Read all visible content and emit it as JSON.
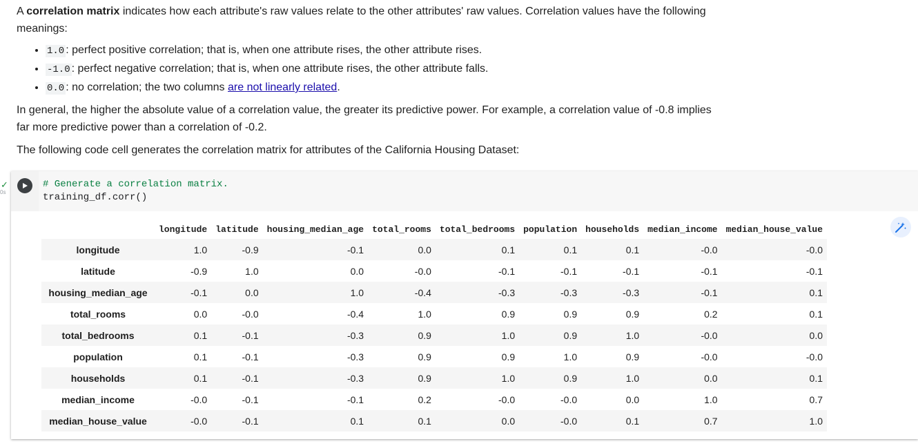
{
  "intro": {
    "p1_prefix": "A ",
    "p1_bold": "correlation matrix",
    "p1_suffix": " indicates how each attribute's raw values relate to the other attributes' raw values. Correlation values have the following meanings:",
    "bullets": [
      {
        "code": "1.0",
        "text": ": perfect positive correlation; that is, when one attribute rises, the other attribute rises."
      },
      {
        "code": "-1.0",
        "text": ": perfect negative correlation; that is, when one attribute rises, the other attribute falls."
      },
      {
        "code": "0.0",
        "text": ": no correlation; the two columns ",
        "link": "are not linearly related",
        "after": "."
      }
    ],
    "p2": "In general, the higher the absolute value of a correlation value, the greater its predictive power. For example, a correlation value of -0.8 implies far more predictive power than a correlation of -0.2.",
    "p3": "The following code cell generates the correlation matrix for attributes of the California Housing Dataset:"
  },
  "cell": {
    "status_check": "✓",
    "exec_time": "0s",
    "code_comment": "# Generate a correlation matrix.",
    "code_line": "training_df.corr()"
  },
  "table": {
    "columns": [
      "longitude",
      "latitude",
      "housing_median_age",
      "total_rooms",
      "total_bedrooms",
      "population",
      "households",
      "median_income",
      "median_house_value"
    ],
    "rows": [
      {
        "label": "longitude",
        "values": [
          "1.0",
          "-0.9",
          "-0.1",
          "0.0",
          "0.1",
          "0.1",
          "0.1",
          "-0.0",
          "-0.0"
        ]
      },
      {
        "label": "latitude",
        "values": [
          "-0.9",
          "1.0",
          "0.0",
          "-0.0",
          "-0.1",
          "-0.1",
          "-0.1",
          "-0.1",
          "-0.1"
        ]
      },
      {
        "label": "housing_median_age",
        "values": [
          "-0.1",
          "0.0",
          "1.0",
          "-0.4",
          "-0.3",
          "-0.3",
          "-0.3",
          "-0.1",
          "0.1"
        ]
      },
      {
        "label": "total_rooms",
        "values": [
          "0.0",
          "-0.0",
          "-0.4",
          "1.0",
          "0.9",
          "0.9",
          "0.9",
          "0.2",
          "0.1"
        ]
      },
      {
        "label": "total_bedrooms",
        "values": [
          "0.1",
          "-0.1",
          "-0.3",
          "0.9",
          "1.0",
          "0.9",
          "1.0",
          "-0.0",
          "0.0"
        ]
      },
      {
        "label": "population",
        "values": [
          "0.1",
          "-0.1",
          "-0.3",
          "0.9",
          "0.9",
          "1.0",
          "0.9",
          "-0.0",
          "-0.0"
        ]
      },
      {
        "label": "households",
        "values": [
          "0.1",
          "-0.1",
          "-0.3",
          "0.9",
          "1.0",
          "0.9",
          "1.0",
          "0.0",
          "0.1"
        ]
      },
      {
        "label": "median_income",
        "values": [
          "-0.0",
          "-0.1",
          "-0.1",
          "0.2",
          "-0.0",
          "-0.0",
          "0.0",
          "1.0",
          "0.7"
        ]
      },
      {
        "label": "median_house_value",
        "values": [
          "-0.0",
          "-0.1",
          "0.1",
          "0.1",
          "0.0",
          "-0.0",
          "0.1",
          "0.7",
          "1.0"
        ]
      }
    ]
  },
  "icons": {
    "run": "play-icon",
    "magic": "magic-wand-icon"
  },
  "colors": {
    "link": "#1a0dab",
    "comment": "#0b8043",
    "check": "#1e8e3e"
  }
}
